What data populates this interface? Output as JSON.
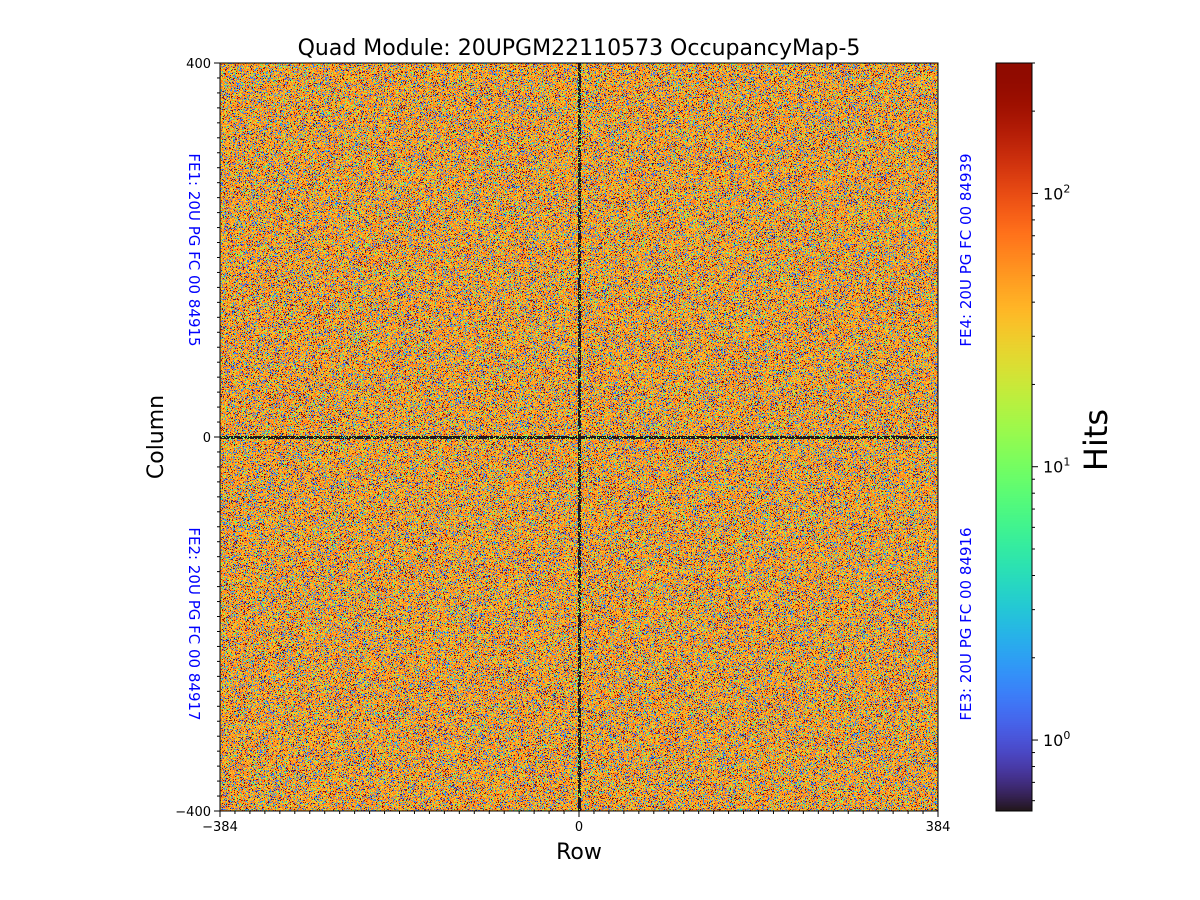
{
  "chart_data": {
    "type": "heatmap",
    "title": "Quad Module: 20UPGM22110573 OccupancyMap-5",
    "xlabel": "Row",
    "ylabel": "Column",
    "x_ticks": [
      "−384",
      "0",
      "384"
    ],
    "y_ticks": [
      "400",
      "0",
      "−400"
    ],
    "xlim": [
      -384,
      384
    ],
    "ylim": [
      -400,
      400
    ],
    "colorbar": {
      "label": "Hits",
      "scale": "log",
      "colormap": "turbo",
      "range": [
        0.55,
        300
      ],
      "ticks": [
        {
          "value": 1,
          "base": "10",
          "exp": "0"
        },
        {
          "value": 10,
          "base": "10",
          "exp": "1"
        },
        {
          "value": 100,
          "base": "10",
          "exp": "2"
        }
      ]
    },
    "quadrant_labels": [
      {
        "id": "FE1",
        "text": "FE1: 20U PG FC 00 84915",
        "side": "left",
        "half": "top"
      },
      {
        "id": "FE2",
        "text": "FE2: 20U PG FC 00 84917",
        "side": "left",
        "half": "bottom"
      },
      {
        "id": "FE3",
        "text": "FE3: 20U PG FC 00 84916",
        "side": "right",
        "half": "bottom"
      },
      {
        "id": "FE4",
        "text": "FE4: 20U PG FC 00 84939",
        "side": "right",
        "half": "top"
      }
    ],
    "description_of_values": "Dense pixel noise; typical occupancy ~20-80 hits (yellow-orange), many dark/low and some high pixels; dark lines along row=0 and column=0 chip boundaries",
    "typical_hits": 40,
    "label_color": "#0000ff"
  }
}
